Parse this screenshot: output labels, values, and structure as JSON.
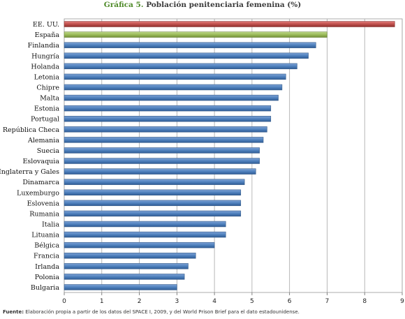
{
  "chart_title": {
    "lead": "Gráfica 5.",
    "rest": "Población penitenciaria femenina (%)"
  },
  "source": {
    "label": "Fuente:",
    "text": "Elaboración propia a partir de los datos del SPACE I, 2009, y del World Prison Brief para el dato estadounidense."
  },
  "colors": {
    "usa": "#c0504d",
    "spain": "#9bbb59",
    "default": "#4f81bd"
  },
  "chart_data": {
    "type": "bar",
    "orientation": "horizontal",
    "title": "Población penitenciaria femenina (%)",
    "categories": [
      "EE. UU.",
      "España",
      "Finlandia",
      "Hungría",
      "Holanda",
      "Letonia",
      "Chipre",
      "Malta",
      "Estonia",
      "Portugal",
      "República Checa",
      "Alemania",
      "Suecia",
      "Eslovaquia",
      "Inglaterra y Gales",
      "Dinamarca",
      "Luxemburgo",
      "Eslovenia",
      "Rumania",
      "Italia",
      "Lituania",
      "Bélgica",
      "Francia",
      "Irlanda",
      "Polonia",
      "Bulgaria"
    ],
    "values": [
      8.8,
      7.0,
      6.7,
      6.5,
      6.2,
      5.9,
      5.8,
      5.7,
      5.5,
      5.5,
      5.4,
      5.3,
      5.2,
      5.2,
      5.1,
      4.8,
      4.7,
      4.7,
      4.7,
      4.3,
      4.3,
      4.0,
      3.5,
      3.3,
      3.2,
      3.0
    ],
    "xlim": [
      0,
      9
    ],
    "xticks": [
      "0",
      "1",
      "2",
      "3",
      "4",
      "5",
      "6",
      "7",
      "8",
      "9"
    ],
    "grid": "vertical",
    "legend": "none"
  }
}
